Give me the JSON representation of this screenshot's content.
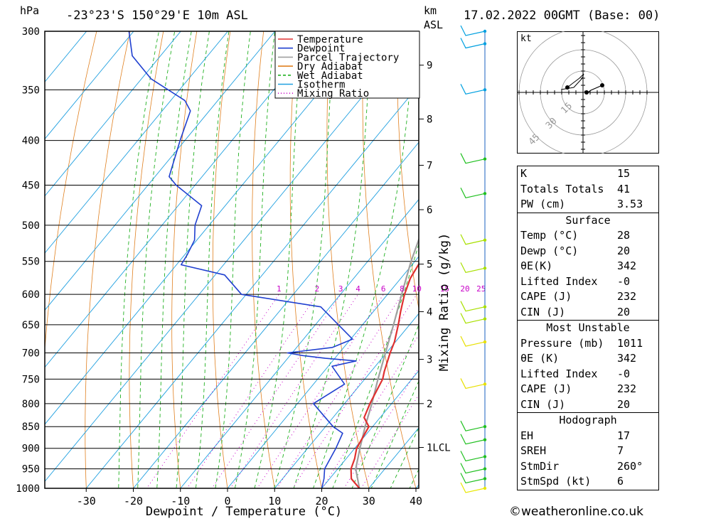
{
  "header": {
    "pressure_unit": "hPa",
    "location": "-23°23'S 150°29'E 10m ASL",
    "height_unit": "km",
    "height_ref": "ASL",
    "datetime": "17.02.2022 00GMT (Base: 00)"
  },
  "legend": {
    "items": [
      {
        "label": "Temperature",
        "color": "#e03030"
      },
      {
        "label": "Dewpoint",
        "color": "#2040d0"
      },
      {
        "label": "Parcel Trajectory",
        "color": "#a0a0a0"
      },
      {
        "label": "Dry Adiabat",
        "color": "#e08020"
      },
      {
        "label": "Wet Adiabat",
        "color": "#20b020"
      },
      {
        "label": "Isotherm",
        "color": "#20a0e0"
      },
      {
        "label": "Mixing Ratio",
        "color": "#c800c8"
      }
    ]
  },
  "chart_data": {
    "type": "line",
    "title": "-23°23'S 150°29'E 10m ASL",
    "xlabel": "Dewpoint / Temperature (°C)",
    "ylabel": "hPa",
    "xlim": [
      -40,
      40
    ],
    "ylim": [
      1000,
      300
    ],
    "x_ticks": [
      -30,
      -20,
      -10,
      0,
      10,
      20,
      30,
      40
    ],
    "pressure_ticks": [
      300,
      350,
      400,
      450,
      500,
      550,
      600,
      650,
      700,
      750,
      800,
      850,
      900,
      950,
      1000
    ],
    "height_ticks": [
      {
        "label": "9",
        "p": 328
      },
      {
        "label": "8",
        "p": 378
      },
      {
        "label": "7",
        "p": 427
      },
      {
        "label": "6",
        "p": 480
      },
      {
        "label": "5",
        "p": 554
      },
      {
        "label": "4",
        "p": 628
      },
      {
        "label": "3",
        "p": 712
      },
      {
        "label": "2",
        "p": 800
      },
      {
        "label": "1LCL",
        "p": 898
      }
    ],
    "mixing_ratio_label": "Mixing Ratio (g/kg)",
    "mixing_ratio_values": [
      "1",
      "2",
      "3",
      "4",
      "6",
      "8",
      "10",
      "15",
      "20",
      "25"
    ],
    "series": [
      {
        "name": "Temperature",
        "points": [
          [
            1000,
            28
          ],
          [
            975,
            24.6
          ],
          [
            950,
            22.8
          ],
          [
            925,
            21.8
          ],
          [
            900,
            20.4
          ],
          [
            875,
            19.8
          ],
          [
            850,
            19.2
          ],
          [
            830,
            16.6
          ],
          [
            800,
            15.4
          ],
          [
            750,
            13.8
          ],
          [
            735,
            12.8
          ],
          [
            700,
            10.8
          ],
          [
            680,
            9.8
          ],
          [
            650,
            7.6
          ],
          [
            628,
            5.8
          ],
          [
            600,
            3.6
          ],
          [
            575,
            2.0
          ],
          [
            550,
            1.2
          ],
          [
            500,
            -3.2
          ],
          [
            470,
            -7.6
          ],
          [
            450,
            -8.0
          ],
          [
            420,
            -11.2
          ],
          [
            400,
            -14.0
          ],
          [
            370,
            -19.4
          ],
          [
            350,
            -24.2
          ],
          [
            320,
            -30.6
          ],
          [
            300,
            -35.6
          ]
        ]
      },
      {
        "name": "Dewpoint",
        "points": [
          [
            1000,
            20
          ],
          [
            975,
            18.8
          ],
          [
            950,
            17.2
          ],
          [
            900,
            16.0
          ],
          [
            865,
            14.8
          ],
          [
            850,
            11.6
          ],
          [
            800,
            3.4
          ],
          [
            760,
            6.6
          ],
          [
            725,
            0.8
          ],
          [
            715,
            5.0
          ],
          [
            710,
            -2.0
          ],
          [
            705,
            -7.2
          ],
          [
            700,
            -11.0
          ],
          [
            690,
            -2.4
          ],
          [
            675,
            0.4
          ],
          [
            620,
            -12.0
          ],
          [
            600,
            -31.0
          ],
          [
            570,
            -38.0
          ],
          [
            555,
            -49.0
          ],
          [
            540,
            -49.5
          ],
          [
            520,
            -50.5
          ],
          [
            500,
            -53.0
          ],
          [
            475,
            -55.0
          ],
          [
            450,
            -64.0
          ],
          [
            440,
            -67.0
          ],
          [
            400,
            -71.0
          ],
          [
            370,
            -74.0
          ],
          [
            360,
            -77.0
          ],
          [
            340,
            -88.0
          ],
          [
            320,
            -96.0
          ],
          [
            300,
            -101.0
          ]
        ]
      },
      {
        "name": "Parcel Trajectory",
        "points": [
          [
            1000,
            28
          ],
          [
            950,
            23.8
          ],
          [
            898,
            21.0
          ],
          [
            850,
            18.4
          ],
          [
            800,
            15.8
          ],
          [
            750,
            12.8
          ],
          [
            700,
            9.8
          ],
          [
            650,
            6.6
          ],
          [
            600,
            3.0
          ],
          [
            550,
            -0.8
          ],
          [
            500,
            -4.4
          ],
          [
            450,
            -9.4
          ],
          [
            400,
            -15.0
          ],
          [
            370,
            -19.0
          ]
        ]
      }
    ]
  },
  "hodograph": {
    "unit_label": "kt",
    "ring_labels": [
      "15",
      "30",
      "45"
    ]
  },
  "stats": {
    "indices": [
      {
        "label": "K",
        "value": "15"
      },
      {
        "label": "Totals Totals",
        "value": "41"
      },
      {
        "label": "PW (cm)",
        "value": "3.53"
      }
    ],
    "surface": {
      "title": "Surface",
      "rows": [
        {
          "label": "Temp (°C)",
          "value": "28"
        },
        {
          "label": "Dewp (°C)",
          "value": "20"
        },
        {
          "label": "θE(K)",
          "value": "342"
        },
        {
          "label": "Lifted Index",
          "value": "-0"
        },
        {
          "label": "CAPE (J)",
          "value": "232"
        },
        {
          "label": "CIN (J)",
          "value": "20"
        }
      ]
    },
    "most_unstable": {
      "title": "Most Unstable",
      "rows": [
        {
          "label": "Pressure (mb)",
          "value": "1011"
        },
        {
          "label": "θE (K)",
          "value": "342"
        },
        {
          "label": "Lifted Index",
          "value": "-0"
        },
        {
          "label": "CAPE (J)",
          "value": "232"
        },
        {
          "label": "CIN (J)",
          "value": "20"
        }
      ]
    },
    "hodograph": {
      "title": "Hodograph",
      "rows": [
        {
          "label": "EH",
          "value": "17"
        },
        {
          "label": "SREH",
          "value": "7"
        },
        {
          "label": "StmDir",
          "value": "260°"
        },
        {
          "label": "StmSpd (kt)",
          "value": "6"
        }
      ]
    }
  },
  "credit": "©weatheronline.co.uk"
}
